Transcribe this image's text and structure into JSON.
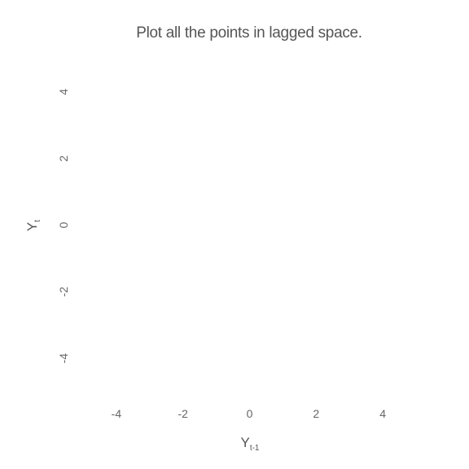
{
  "chart_data": {
    "type": "scatter",
    "title": "Plot all the points in lagged space.",
    "xlabel": {
      "base": "Y",
      "sub": "t-1"
    },
    "ylabel": {
      "base": "Y",
      "sub": "t"
    },
    "xlim": [
      -5,
      5
    ],
    "ylim": [
      -5,
      5
    ],
    "x_ticks": [
      -4,
      -2,
      0,
      2,
      4
    ],
    "y_ticks": [
      -4,
      -2,
      0,
      2,
      4
    ],
    "x_tick_labels": [
      "-4",
      "-2",
      "0",
      "2",
      "4"
    ],
    "y_tick_labels": [
      "-4",
      "-2",
      "0",
      "2",
      "4"
    ],
    "points": [],
    "grid": false,
    "legend": "none",
    "colors": {
      "text": "#555555",
      "ticks": "#666666",
      "background": "#ffffff"
    }
  }
}
